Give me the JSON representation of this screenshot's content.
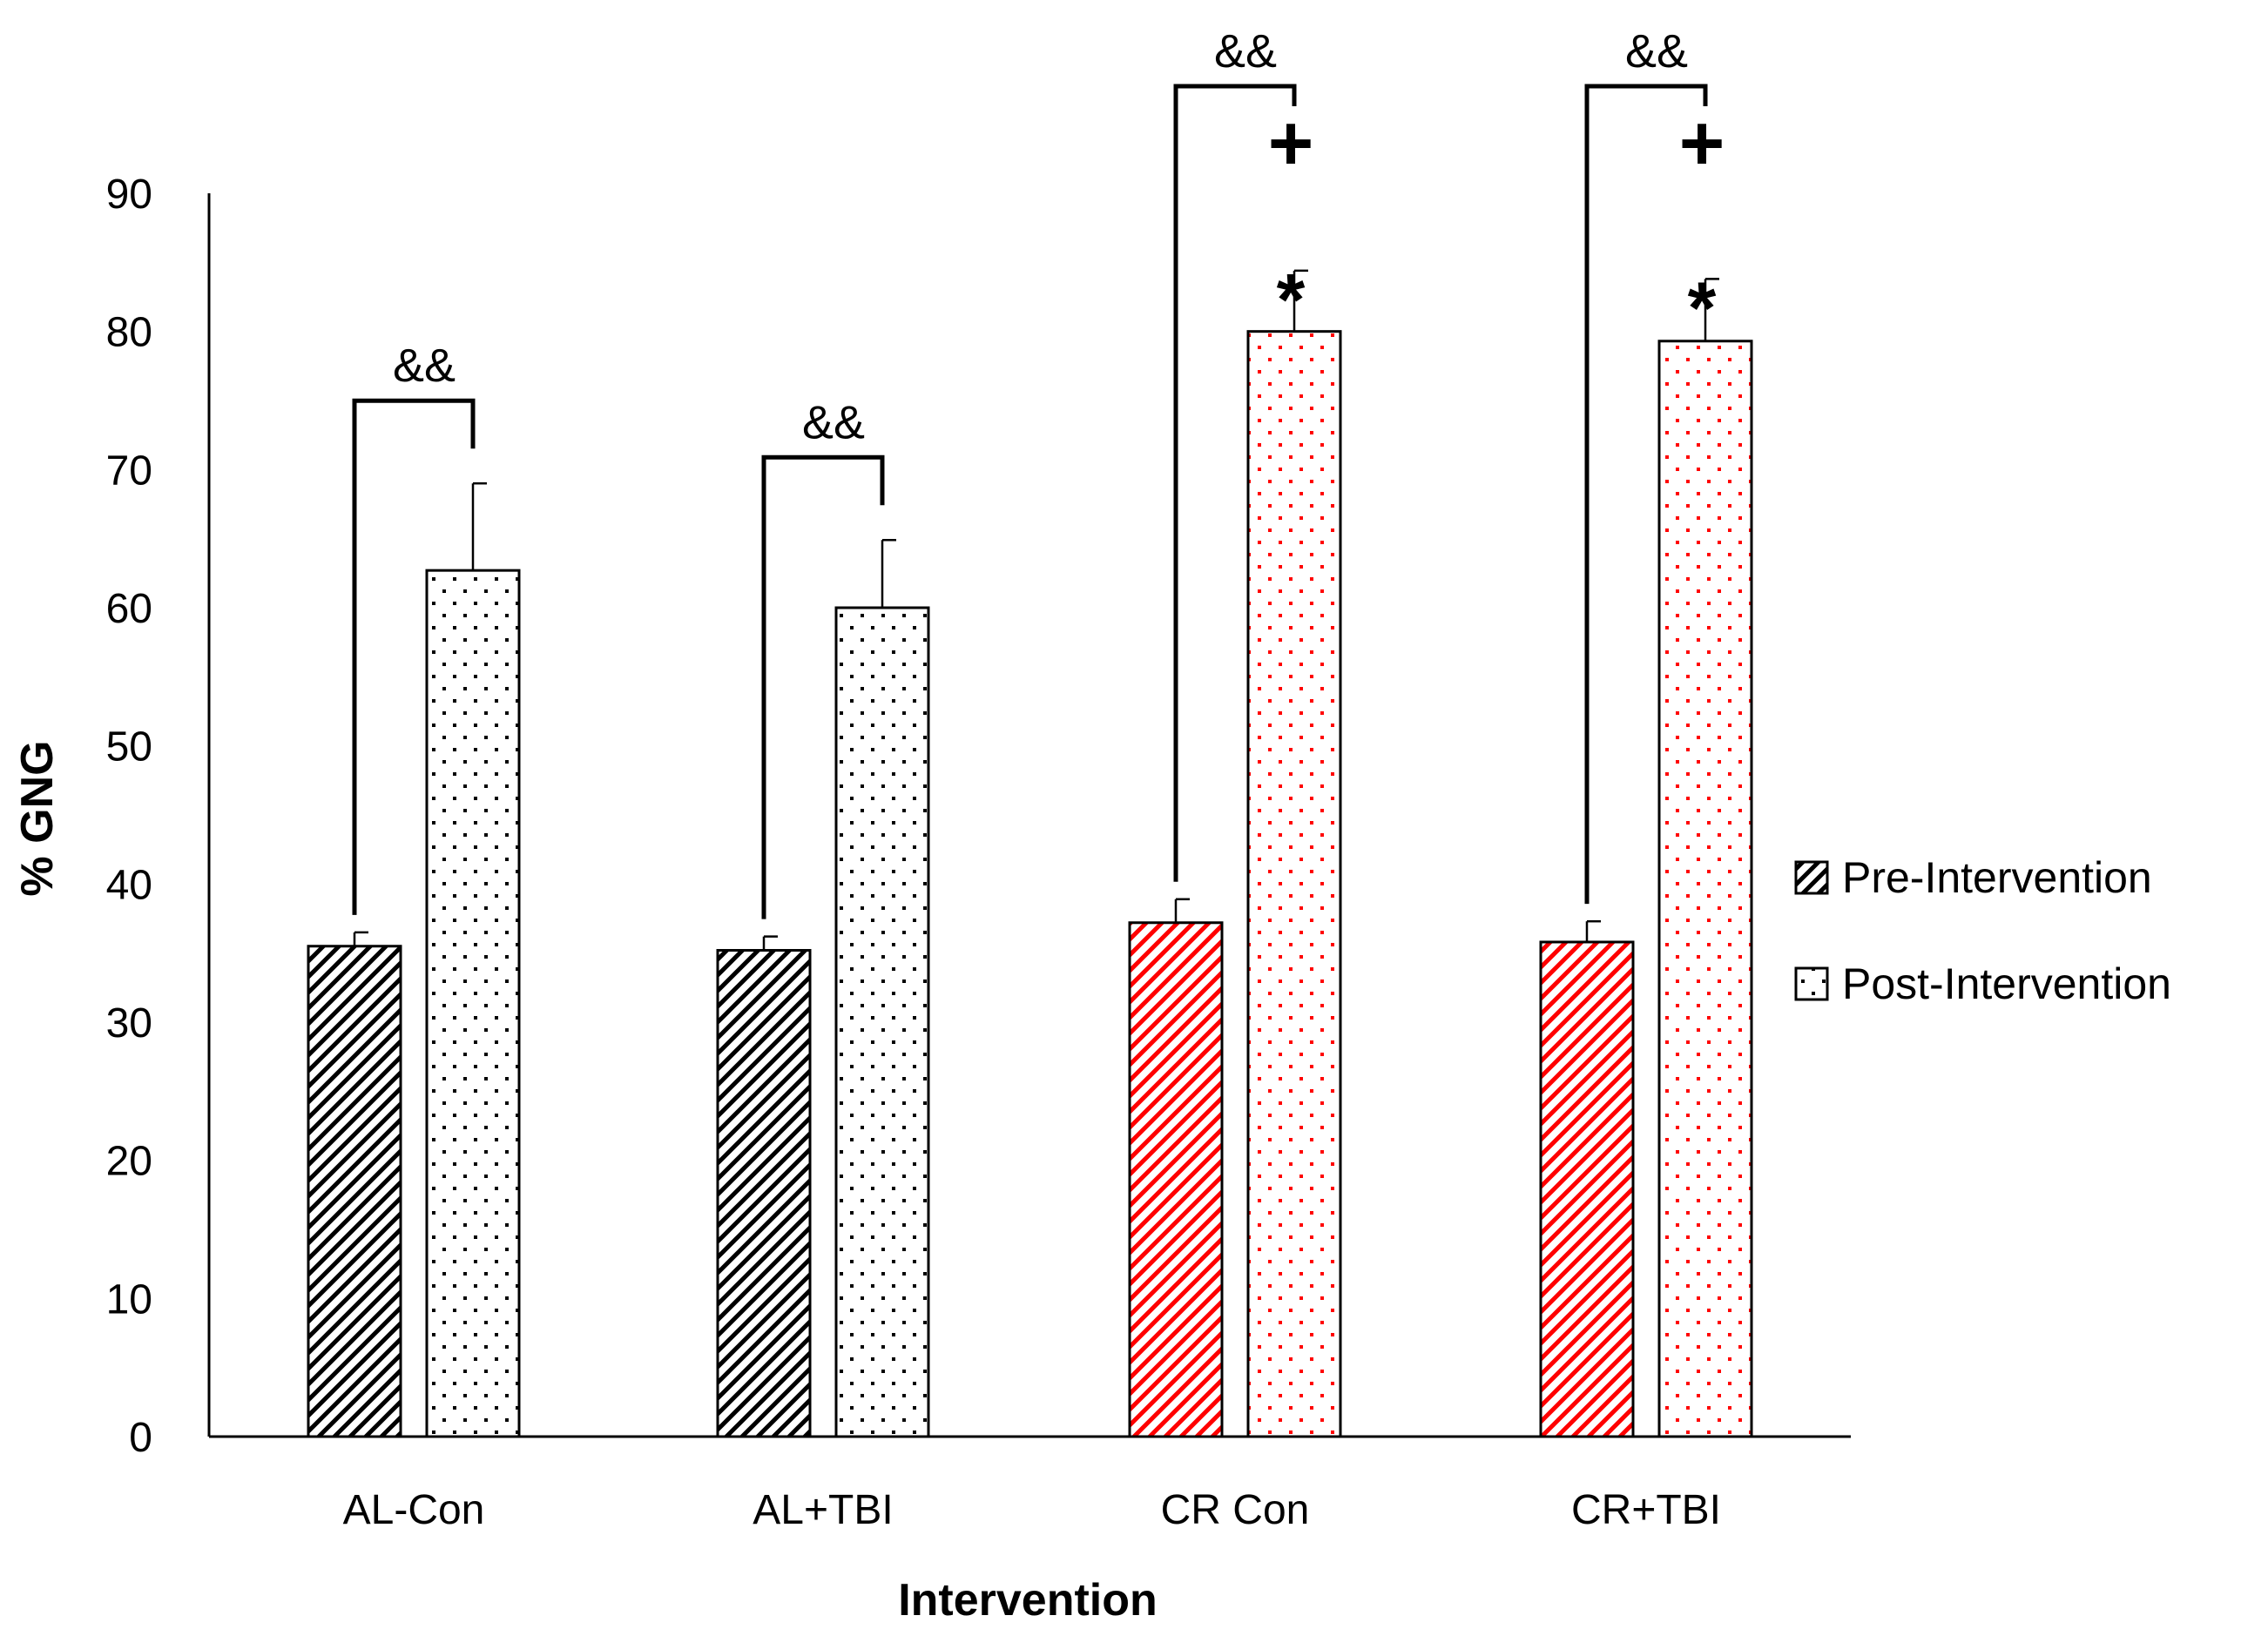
{
  "chart_data": {
    "type": "bar",
    "title": "",
    "xlabel": "Intervention",
    "ylabel": "% GNG",
    "ylim": [
      0,
      90
    ],
    "yticks": [
      0,
      10,
      20,
      30,
      40,
      50,
      60,
      70,
      80,
      90
    ],
    "grid": false,
    "legend_position": "right",
    "categories": [
      "AL-Con",
      "AL+TBI",
      "CR Con",
      "CR+TBI"
    ],
    "series": [
      {
        "name": "Pre-Intervention",
        "pattern": "diagonal-hatch",
        "values": [
          35.5,
          35.2,
          37.2,
          35.8
        ],
        "errors": [
          1.0,
          1.0,
          1.7,
          1.5
        ]
      },
      {
        "name": "Post-Intervention",
        "pattern": "dots",
        "values": [
          62.7,
          60.0,
          80.0,
          79.3
        ],
        "errors": [
          6.3,
          4.9,
          4.4,
          4.5
        ]
      }
    ],
    "group_colors": [
      "#000000",
      "#000000",
      "#ff0000",
      "#ff0000"
    ],
    "annotations": [
      {
        "category": "AL-Con",
        "bracket": "&&",
        "star": "",
        "plus": ""
      },
      {
        "category": "AL+TBI",
        "bracket": "&&",
        "star": "",
        "plus": ""
      },
      {
        "category": "CR Con",
        "bracket": "&&",
        "star": "*",
        "plus": "+"
      },
      {
        "category": "CR+TBI",
        "bracket": "&&",
        "star": "*",
        "plus": "+"
      }
    ]
  }
}
